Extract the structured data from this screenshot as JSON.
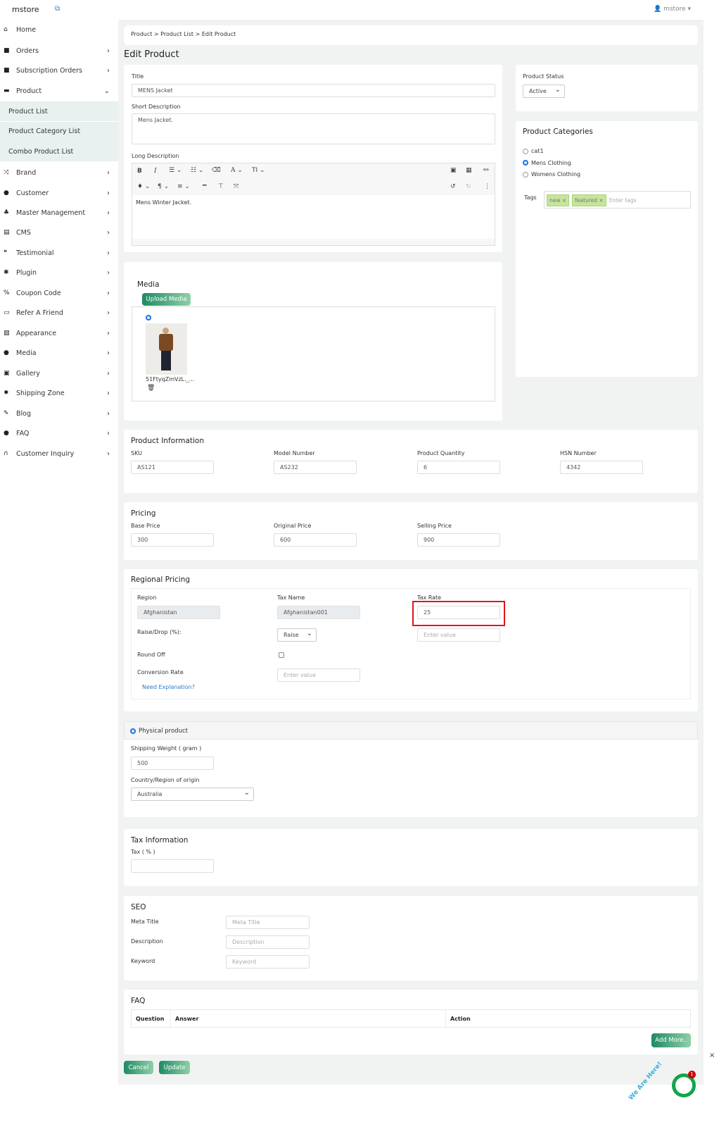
{
  "header": {
    "brand": "mstore",
    "external_icon": "external-link-icon",
    "user": "mstore"
  },
  "breadcrumb": "Product > Product List > Edit Product",
  "page_title": "Edit Product",
  "sidebar": {
    "items": [
      {
        "label": "Home",
        "icon": "home-icon"
      },
      {
        "label": "Orders",
        "icon": "bag-icon"
      },
      {
        "label": "Subscription Orders",
        "icon": "bag-icon"
      },
      {
        "label": "Product",
        "icon": "archive-icon",
        "expanded": true
      },
      {
        "label": "Brand",
        "icon": "shuffle-icon"
      },
      {
        "label": "Customer",
        "icon": "user-icon"
      },
      {
        "label": "Master Management",
        "icon": "users-icon"
      },
      {
        "label": "CMS",
        "icon": "file-icon"
      },
      {
        "label": "Testimonial",
        "icon": "quote-icon"
      },
      {
        "label": "Plugin",
        "icon": "puzzle-icon"
      },
      {
        "label": "Coupon Code",
        "icon": "percent-icon"
      },
      {
        "label": "Refer A Friend",
        "icon": "card-icon"
      },
      {
        "label": "Appearance",
        "icon": "image-icon"
      },
      {
        "label": "Media",
        "icon": "play-icon"
      },
      {
        "label": "Gallery",
        "icon": "gallery-icon"
      },
      {
        "label": "Shipping Zone",
        "icon": "gear-icon"
      },
      {
        "label": "Blog",
        "icon": "pencil-icon"
      },
      {
        "label": "FAQ",
        "icon": "question-icon"
      },
      {
        "label": "Customer Inquiry",
        "icon": "headset-icon"
      }
    ],
    "product_sub": [
      "Product List",
      "Product Category List",
      "Combo Product List"
    ]
  },
  "general": {
    "title_label": "Title",
    "title_value": "MENS Jacket",
    "short_label": "Short Description",
    "short_value": "Mens Jacket.",
    "long_label": "Long Description",
    "long_value": "Mens Winter Jacket."
  },
  "status": {
    "label": "Product Status",
    "value": "Active"
  },
  "categories": {
    "title": "Product Categories",
    "options": [
      {
        "label": "cat1",
        "checked": false
      },
      {
        "label": "Mens Clothing",
        "checked": true
      },
      {
        "label": "Womens Clothing",
        "checked": false
      }
    ],
    "tags_label": "Tags",
    "tags": [
      "new ×",
      "featured ×"
    ],
    "tags_placeholder": "Enter tags"
  },
  "media": {
    "title": "Media",
    "upload_label": "Upload Media",
    "filename": "51FtyqZmVzL._..."
  },
  "product_info": {
    "title": "Product Information",
    "fields": [
      {
        "label": "SKU",
        "value": "AS121"
      },
      {
        "label": "Model Number",
        "value": "AS232"
      },
      {
        "label": "Product Quantity",
        "value": "6"
      },
      {
        "label": "HSN Number",
        "value": "4342"
      }
    ]
  },
  "pricing": {
    "title": "Pricing",
    "fields": [
      {
        "label": "Base Price",
        "value": "300"
      },
      {
        "label": "Original Price",
        "value": "600"
      },
      {
        "label": "Selling Price",
        "value": "900"
      }
    ]
  },
  "regional": {
    "title": "Regional Pricing",
    "region_label": "Region",
    "region_value": "Afghanistan",
    "tax_name_label": "Tax Name",
    "tax_name_value": "Afghanistan001",
    "tax_rate_label": "Tax Rate",
    "tax_rate_value": "25",
    "raise_label": "Raise/Drop (%):",
    "raise_value": "Raise",
    "raise_placeholder": "Enter value",
    "round_label": "Round Off",
    "round_checked": false,
    "conv_label": "Conversion Rate",
    "conv_placeholder": "Enter value",
    "explain_link": "Need Explanation?",
    "highlight_color": "#e0141e"
  },
  "shipping": {
    "type_label": "Physical product",
    "weight_label": "Shipping Weight ( gram )",
    "weight_value": "500",
    "origin_label": "Country/Region of origin",
    "origin_value": "Australia"
  },
  "tax": {
    "title": "Tax Information",
    "label": "Tax ( % )",
    "value": ""
  },
  "seo": {
    "title": "SEO",
    "fields": [
      {
        "label": "Meta Title",
        "placeholder": "Meta Title"
      },
      {
        "label": "Description",
        "placeholder": "Description"
      },
      {
        "label": "Keyword",
        "placeholder": "Keyword"
      }
    ]
  },
  "faq": {
    "title": "FAQ",
    "columns": [
      "Question",
      "Answer",
      "Action"
    ],
    "add_label": "Add More.."
  },
  "actions": {
    "cancel": "Cancel",
    "update": "Update"
  },
  "chat": {
    "text": "We Are Here!",
    "badge": "1",
    "close": "×"
  },
  "colors": {
    "accent": "#1e8a63",
    "sidebar_active_bg": "#e8f1ef"
  }
}
